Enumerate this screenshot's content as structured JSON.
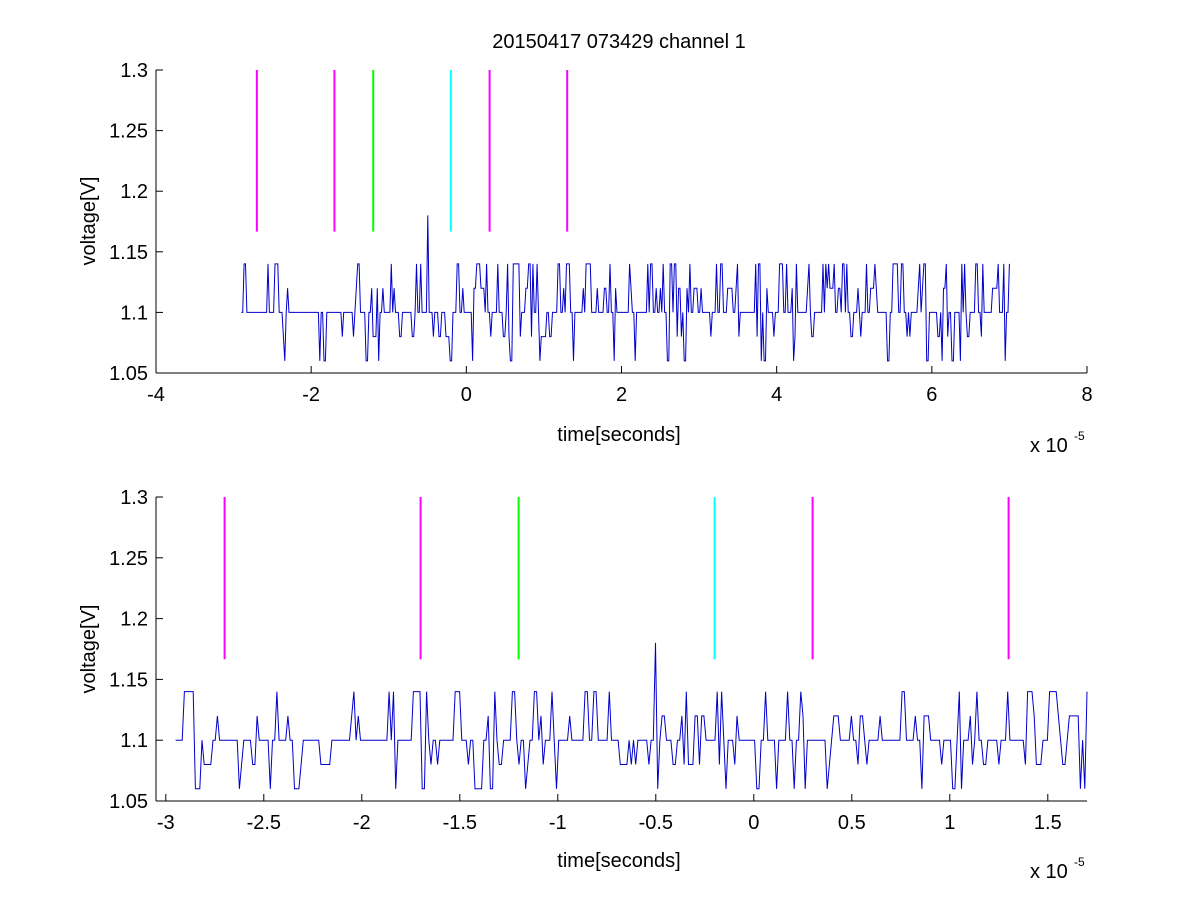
{
  "figure": {
    "title": "20150417 073429 channel 1",
    "background": "#ffffff"
  },
  "chart_data": [
    {
      "type": "line",
      "title": "20150417 073429 channel 1",
      "xlabel": "time[seconds]",
      "ylabel": "voltage[V]",
      "x_exponent_label": "x 10",
      "x_exponent": "-5",
      "xlim": [
        -4,
        8
      ],
      "ylim": [
        1.05,
        1.3
      ],
      "xticks": [
        "-4",
        "-2",
        "0",
        "2",
        "4",
        "6",
        "8"
      ],
      "yticks": [
        "1.05",
        "1.1",
        "1.15",
        "1.2",
        "1.25",
        "1.3"
      ],
      "grid": false,
      "signal": {
        "color": "#0000cc",
        "x_start": -2.9,
        "x_end": 7.0,
        "baseline": 1.1,
        "levels": [
          1.06,
          1.08,
          1.1,
          1.12,
          1.14
        ],
        "spike": {
          "x": -0.5,
          "y": 1.18
        }
      },
      "markers": [
        {
          "x": -2.7,
          "y_from": 1.1666,
          "y_to": 1.3,
          "color": "#ff00ff"
        },
        {
          "x": -1.7,
          "y_from": 1.1666,
          "y_to": 1.3,
          "color": "#ff00ff"
        },
        {
          "x": -1.2,
          "y_from": 1.1666,
          "y_to": 1.3,
          "color": "#00ff00"
        },
        {
          "x": -0.2,
          "y_from": 1.1666,
          "y_to": 1.3,
          "color": "#00ffff"
        },
        {
          "x": 0.3,
          "y_from": 1.1666,
          "y_to": 1.3,
          "color": "#ff00ff"
        },
        {
          "x": 1.3,
          "y_from": 1.1666,
          "y_to": 1.3,
          "color": "#ff00ff"
        }
      ]
    },
    {
      "type": "line",
      "title": "",
      "xlabel": "time[seconds]",
      "ylabel": "voltage[V]",
      "x_exponent_label": "x 10",
      "x_exponent": "-5",
      "xlim": [
        -3.05,
        1.7
      ],
      "ylim": [
        1.05,
        1.3
      ],
      "xticks": [
        "-3",
        "-2.5",
        "-2",
        "-1.5",
        "-1",
        "-0.5",
        "0",
        "0.5",
        "1",
        "1.5"
      ],
      "xtick_values": [
        -3,
        -2.5,
        -2,
        -1.5,
        -1,
        -0.5,
        0,
        0.5,
        1,
        1.5
      ],
      "yticks": [
        "1.05",
        "1.1",
        "1.15",
        "1.2",
        "1.25",
        "1.3"
      ],
      "grid": false,
      "signal": {
        "color": "#0000cc",
        "x_start": -2.95,
        "x_end": 1.7,
        "baseline": 1.1,
        "levels": [
          1.06,
          1.08,
          1.1,
          1.12,
          1.14
        ],
        "spike": {
          "x": -0.5,
          "y": 1.18
        }
      },
      "markers": [
        {
          "x": -2.7,
          "y_from": 1.1666,
          "y_to": 1.3,
          "color": "#ff00ff"
        },
        {
          "x": -1.7,
          "y_from": 1.1666,
          "y_to": 1.3,
          "color": "#ff00ff"
        },
        {
          "x": -1.2,
          "y_from": 1.1666,
          "y_to": 1.3,
          "color": "#00ff00"
        },
        {
          "x": -0.2,
          "y_from": 1.1666,
          "y_to": 1.3,
          "color": "#00ffff"
        },
        {
          "x": 0.3,
          "y_from": 1.1666,
          "y_to": 1.3,
          "color": "#ff00ff"
        },
        {
          "x": 1.3,
          "y_from": 1.1666,
          "y_to": 1.3,
          "color": "#ff00ff"
        }
      ]
    }
  ]
}
